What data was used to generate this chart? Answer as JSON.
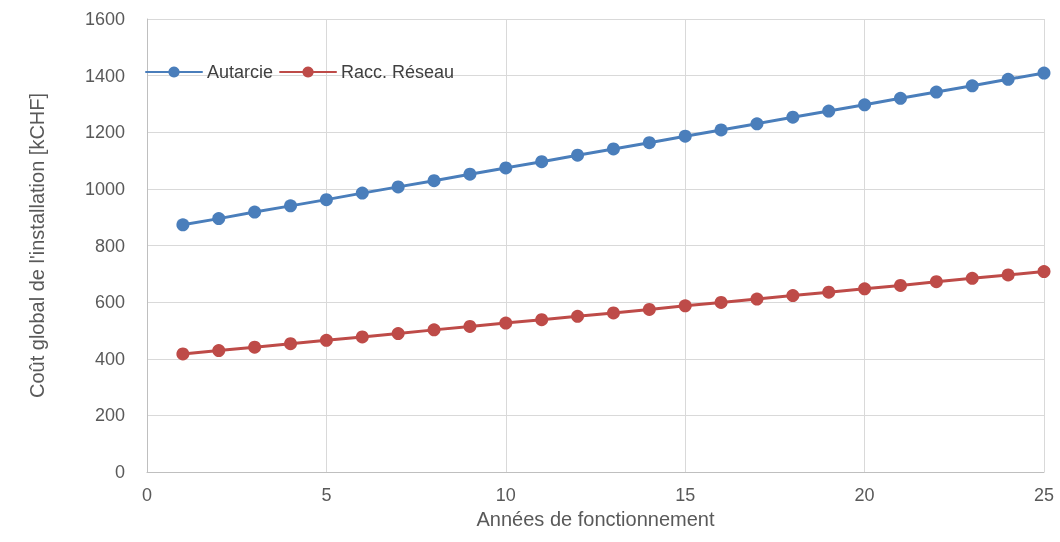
{
  "chart_data": {
    "type": "line",
    "xlabel": "Années de fonctionnement",
    "ylabel": "Coût global de l'installation [kCHF]",
    "x": [
      1,
      2,
      3,
      4,
      5,
      6,
      7,
      8,
      9,
      10,
      11,
      12,
      13,
      14,
      15,
      16,
      17,
      18,
      19,
      20,
      21,
      22,
      23,
      24,
      25
    ],
    "series": [
      {
        "name": "Autarcie",
        "color": "#4a7ebb",
        "values": [
          873,
          895,
          918,
          940,
          962,
          985,
          1007,
          1029,
          1052,
          1074,
          1096,
          1119,
          1141,
          1163,
          1186,
          1208,
          1230,
          1253,
          1275,
          1297,
          1320,
          1342,
          1364,
          1387,
          1409
        ]
      },
      {
        "name": "Racc. Réseau",
        "color": "#be4b48",
        "values": [
          417,
          429,
          441,
          453,
          465,
          477,
          489,
          502,
          514,
          526,
          538,
          550,
          562,
          574,
          587,
          599,
          611,
          623,
          635,
          647,
          659,
          672,
          684,
          696,
          708
        ]
      }
    ],
    "xlim": [
      0,
      25
    ],
    "xticks": [
      0,
      5,
      10,
      15,
      20,
      25
    ],
    "ylim": [
      0,
      1600
    ],
    "yticks": [
      0,
      200,
      400,
      600,
      800,
      1000,
      1200,
      1400,
      1600
    ],
    "grid": true,
    "legend": "top left",
    "marker": "circle",
    "line_style": "solid"
  }
}
